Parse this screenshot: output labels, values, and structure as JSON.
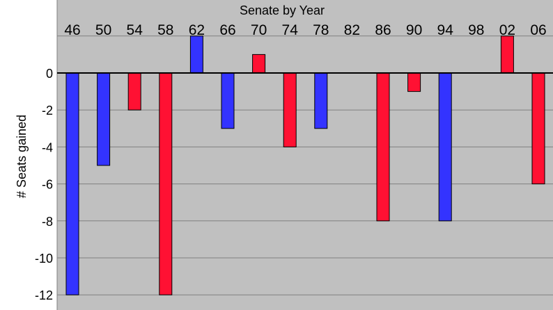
{
  "chart_data": {
    "type": "bar",
    "title": "Senate by Year",
    "xlabel": "",
    "ylabel": "# Seats gained",
    "categories": [
      "46",
      "50",
      "54",
      "58",
      "62",
      "66",
      "70",
      "74",
      "78",
      "82",
      "86",
      "90",
      "94",
      "98",
      "02",
      "06"
    ],
    "values": [
      -12,
      -5,
      -2,
      -12,
      2,
      -3,
      1,
      -4,
      -3,
      0,
      -8,
      -1,
      -8,
      0,
      2,
      -6
    ],
    "bar_colors": [
      "#3333ff",
      "#3333ff",
      "#ff1133",
      "#ff1133",
      "#3333ff",
      "#3333ff",
      "#ff1133",
      "#ff1133",
      "#3333ff",
      null,
      "#ff1133",
      "#ff1133",
      "#3333ff",
      null,
      "#ff1133",
      "#ff1133"
    ],
    "ylim": [
      -12.8,
      2.0
    ],
    "yticks": [
      -12,
      -10,
      -8,
      -6,
      -4,
      -2,
      0
    ],
    "grid": true,
    "plot_background": "#c0c0c0",
    "gridline_color": "#808080"
  }
}
